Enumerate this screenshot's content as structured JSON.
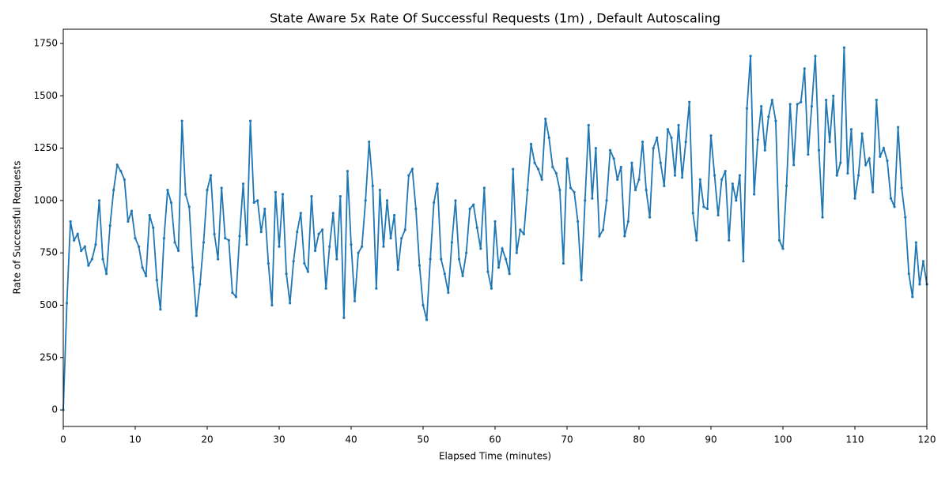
{
  "chart_data": {
    "type": "line",
    "title": "State Aware 5x Rate Of Successful Requests (1m) , Default Autoscaling",
    "x_label": "Elapsed Time (minutes)",
    "y_label": "Rate of Successful Requests",
    "xlim": [
      0,
      120
    ],
    "ylim": [
      -79,
      1818
    ],
    "xticks": [
      0,
      10,
      20,
      30,
      40,
      50,
      60,
      70,
      80,
      90,
      100,
      110,
      120
    ],
    "yticks": [
      0,
      250,
      500,
      750,
      1000,
      1250,
      1500,
      1750
    ],
    "series": [
      {
        "name": "Rate of Successful Requests",
        "color": "#1f77b4",
        "x": [
          0,
          0.5,
          1,
          1.5,
          2,
          2.5,
          3,
          3.5,
          4,
          4.5,
          5,
          5.5,
          6,
          6.5,
          7,
          7.5,
          8,
          8.5,
          9,
          9.5,
          10,
          10.5,
          11,
          11.5,
          12,
          12.5,
          13,
          13.5,
          14,
          14.5,
          15,
          15.5,
          16,
          16.5,
          17,
          17.5,
          18,
          18.5,
          19,
          19.5,
          20,
          20.5,
          21,
          21.5,
          22,
          22.5,
          23,
          23.5,
          24,
          24.5,
          25,
          25.5,
          26,
          26.5,
          27,
          27.5,
          28,
          28.5,
          29,
          29.5,
          30,
          30.5,
          31,
          31.5,
          32,
          32.5,
          33,
          33.5,
          34,
          34.5,
          35,
          35.5,
          36,
          36.5,
          37,
          37.5,
          38,
          38.5,
          39,
          39.5,
          40,
          40.5,
          41,
          41.5,
          42,
          42.5,
          43,
          43.5,
          44,
          44.5,
          45,
          45.5,
          46,
          46.5,
          47,
          47.5,
          48,
          48.5,
          49,
          49.5,
          50,
          50.5,
          51,
          51.5,
          52,
          52.5,
          53,
          53.5,
          54,
          54.5,
          55,
          55.5,
          56,
          56.5,
          57,
          57.5,
          58,
          58.5,
          59,
          59.5,
          60,
          60.5,
          61,
          61.5,
          62,
          62.5,
          63,
          63.5,
          64,
          64.5,
          65,
          65.5,
          66,
          66.5,
          67,
          67.5,
          68,
          68.5,
          69,
          69.5,
          70,
          70.5,
          71,
          71.5,
          72,
          72.5,
          73,
          73.5,
          74,
          74.5,
          75,
          75.5,
          76,
          76.5,
          77,
          77.5,
          78,
          78.5,
          79,
          79.5,
          80,
          80.5,
          81,
          81.5,
          82,
          82.5,
          83,
          83.5,
          84,
          84.5,
          85,
          85.5,
          86,
          86.5,
          87,
          87.5,
          88,
          88.5,
          89,
          89.5,
          90,
          90.5,
          91,
          91.5,
          92,
          92.5,
          93,
          93.5,
          94,
          94.5,
          95,
          95.5,
          96,
          96.5,
          97,
          97.5,
          98,
          98.5,
          99,
          99.5,
          100,
          100.5,
          101,
          101.5,
          102,
          102.5,
          103,
          103.5,
          104,
          104.5,
          105,
          105.5,
          106,
          106.5,
          107,
          107.5,
          108,
          108.5,
          109,
          109.5,
          110,
          110.5,
          111,
          111.5,
          112,
          112.5,
          113,
          113.5,
          114,
          114.5,
          115,
          115.5,
          116,
          116.5,
          117,
          117.5,
          118,
          118.5,
          119,
          119.5,
          120
        ],
        "values": [
          0,
          510,
          900,
          810,
          840,
          760,
          780,
          690,
          720,
          790,
          1000,
          720,
          650,
          880,
          1050,
          1170,
          1140,
          1100,
          900,
          950,
          820,
          780,
          680,
          640,
          930,
          870,
          620,
          480,
          820,
          1050,
          990,
          800,
          760,
          1380,
          1030,
          970,
          680,
          450,
          600,
          800,
          1050,
          1120,
          840,
          720,
          1060,
          820,
          810,
          560,
          540,
          830,
          1080,
          790,
          1380,
          990,
          1000,
          850,
          960,
          700,
          500,
          1040,
          780,
          1030,
          650,
          510,
          710,
          850,
          940,
          700,
          660,
          1020,
          760,
          840,
          860,
          580,
          780,
          940,
          720,
          1020,
          440,
          1140,
          790,
          520,
          750,
          780,
          1000,
          1280,
          1070,
          580,
          1050,
          780,
          1000,
          820,
          930,
          670,
          820,
          860,
          1120,
          1150,
          960,
          690,
          500,
          430,
          720,
          990,
          1080,
          720,
          650,
          560,
          800,
          1000,
          720,
          640,
          750,
          960,
          980,
          870,
          770,
          1060,
          660,
          580,
          900,
          680,
          770,
          720,
          650,
          1150,
          750,
          860,
          840,
          1050,
          1270,
          1180,
          1150,
          1100,
          1390,
          1300,
          1160,
          1130,
          1050,
          700,
          1200,
          1060,
          1040,
          900,
          620,
          1000,
          1360,
          1010,
          1250,
          830,
          860,
          1000,
          1240,
          1200,
          1100,
          1160,
          830,
          900,
          1180,
          1050,
          1100,
          1280,
          1050,
          920,
          1250,
          1300,
          1180,
          1070,
          1340,
          1300,
          1120,
          1360,
          1110,
          1280,
          1470,
          940,
          810,
          1100,
          970,
          960,
          1310,
          1120,
          930,
          1100,
          1140,
          810,
          1080,
          1000,
          1120,
          710,
          1440,
          1690,
          1030,
          1290,
          1450,
          1240,
          1400,
          1480,
          1380,
          810,
          770,
          1070,
          1460,
          1170,
          1460,
          1470,
          1630,
          1220,
          1450,
          1690,
          1240,
          920,
          1480,
          1280,
          1500,
          1120,
          1180,
          1730,
          1130,
          1340,
          1010,
          1120,
          1320,
          1170,
          1200,
          1040,
          1480,
          1210,
          1250,
          1190,
          1010,
          970,
          1350,
          1060,
          920,
          650,
          540,
          800,
          600,
          710,
          600
        ]
      }
    ]
  }
}
